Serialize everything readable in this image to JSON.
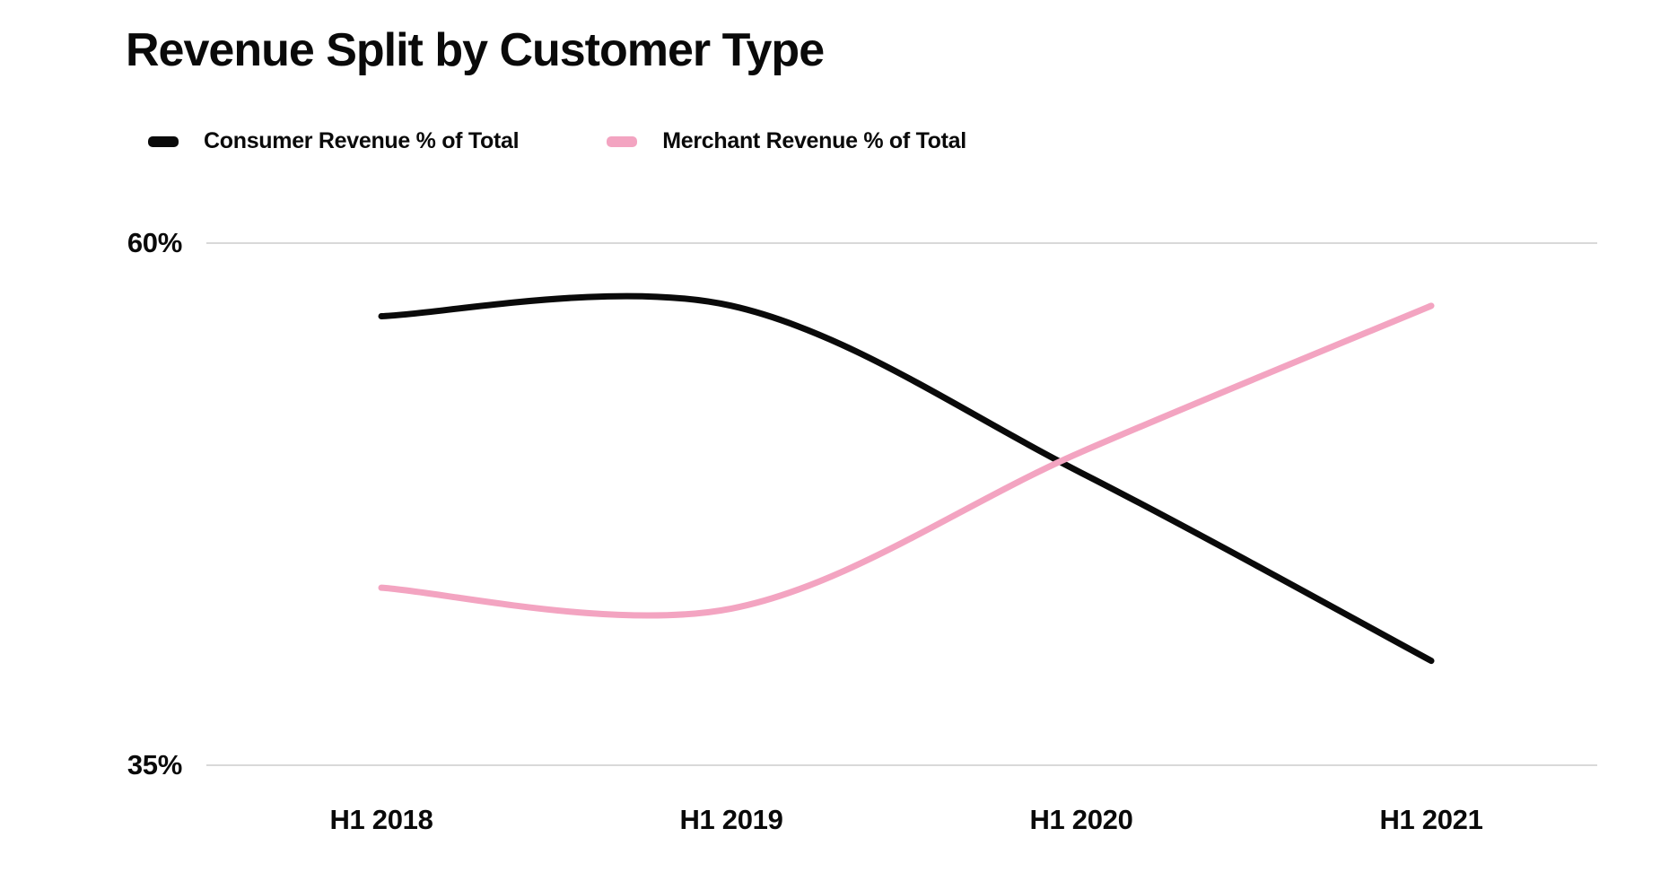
{
  "title": "Revenue Split by Customer Type",
  "legend": [
    {
      "label": "Consumer Revenue % of Total",
      "color": "#0a0a0a"
    },
    {
      "label": "Merchant Revenue % of Total",
      "color": "#f3a4c1"
    }
  ],
  "colors": {
    "consumer_line": "#0a0a0a",
    "merchant_line": "#f3a4c1",
    "gridline": "#d9d9d9",
    "text": "#0a0a0a",
    "background": "#ffffff"
  },
  "chart_data": {
    "type": "line",
    "title": "Revenue Split by Customer Type",
    "categories": [
      "H1 2018",
      "H1 2019",
      "H1 2020",
      "H1 2021"
    ],
    "series": [
      {
        "name": "Consumer Revenue % of Total",
        "color": "#0a0a0a",
        "values": [
          56.5,
          57.0,
          49.0,
          40.0
        ]
      },
      {
        "name": "Merchant Revenue % of Total",
        "color": "#f3a4c1",
        "values": [
          43.5,
          42.5,
          50.0,
          57.0
        ]
      }
    ],
    "xlabel": "",
    "ylabel": "",
    "ylim": [
      35,
      60
    ],
    "y_ticks": [
      {
        "value": 60,
        "label": "60%"
      },
      {
        "value": 35,
        "label": "35%"
      }
    ],
    "grid": "horizontal-only",
    "legend_position": "top-left",
    "curve": "smooth"
  }
}
